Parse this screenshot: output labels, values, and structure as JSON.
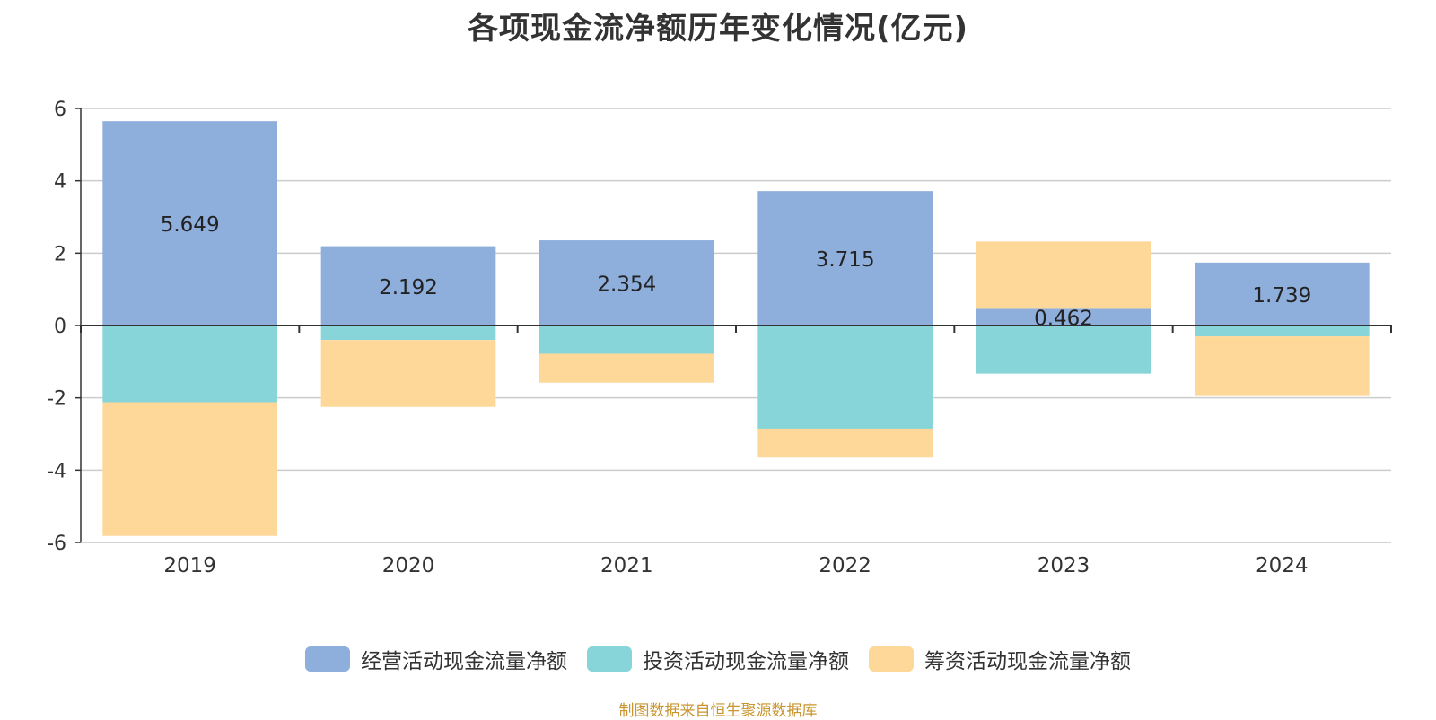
{
  "title": "各项现金流净额历年变化情况(亿元)",
  "source": "制图数据来自恒生聚源数据库",
  "chart_data": {
    "type": "bar",
    "stacked": true,
    "categories": [
      "2019",
      "2020",
      "2021",
      "2022",
      "2023",
      "2024"
    ],
    "ylim": [
      -6,
      6
    ],
    "yticks": [
      6,
      4,
      2,
      0,
      -2,
      -4,
      -6
    ],
    "ytick_labels": [
      "6",
      "4",
      "2",
      "0",
      "-2",
      "-4",
      "-6"
    ],
    "grid": true,
    "legend_position": "bottom",
    "series": [
      {
        "name": "经营活动现金流量净额",
        "color": "#8eaedc",
        "values": [
          5.649,
          2.192,
          2.354,
          3.715,
          0.462,
          1.739
        ],
        "labels": [
          "5.649",
          "2.192",
          "2.354",
          "3.715",
          "0.462",
          "1.739"
        ]
      },
      {
        "name": "投资活动现金流量净额",
        "color": "#87d5d8",
        "values": [
          -2.12,
          -0.4,
          -0.78,
          -2.85,
          -1.33,
          -0.3
        ]
      },
      {
        "name": "筹资活动现金流量净额",
        "color": "#fed898",
        "values": [
          -3.7,
          -1.85,
          -0.8,
          -0.8,
          1.86,
          -1.65
        ]
      }
    ]
  }
}
